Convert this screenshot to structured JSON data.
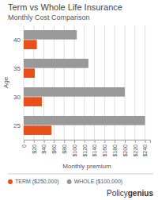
{
  "chart_data": {
    "type": "bar",
    "orientation": "horizontal",
    "title": "Term vs Whole Life Insurance",
    "subtitle": "Monthly Cost Comparison",
    "x_label": "Monthly premium",
    "y_label": "Age",
    "categories": [
      "40",
      "35",
      "30",
      "25"
    ],
    "series": [
      {
        "name": "TERM ($250,000)",
        "color": "#E8501A",
        "values": [
          26,
          22,
          36,
          55
        ]
      },
      {
        "name": "WHOLE ($100,000)",
        "color": "#999999",
        "values": [
          105,
          128,
          200,
          240
        ]
      }
    ],
    "xlim": [
      0,
      250
    ],
    "xticks": [
      0,
      {
        "value": 20,
        "label": "$20"
      },
      {
        "value": 40,
        "label": "$40"
      },
      {
        "value": 60,
        "label": "$60"
      },
      {
        "value": 80,
        "label": "$80"
      },
      {
        "value": 100,
        "label": "$100"
      },
      {
        "value": 120,
        "label": "$120"
      },
      {
        "value": 140,
        "label": "$140"
      },
      {
        "value": 160,
        "label": "$160"
      },
      {
        "value": 180,
        "label": "$180"
      },
      {
        "value": 200,
        "label": "$200"
      },
      {
        "value": 220,
        "label": "$220"
      },
      {
        "value": 240,
        "label": "$240"
      }
    ],
    "grid": true,
    "legend": "bottom",
    "annotations": [
      "Policy",
      "genius"
    ]
  }
}
